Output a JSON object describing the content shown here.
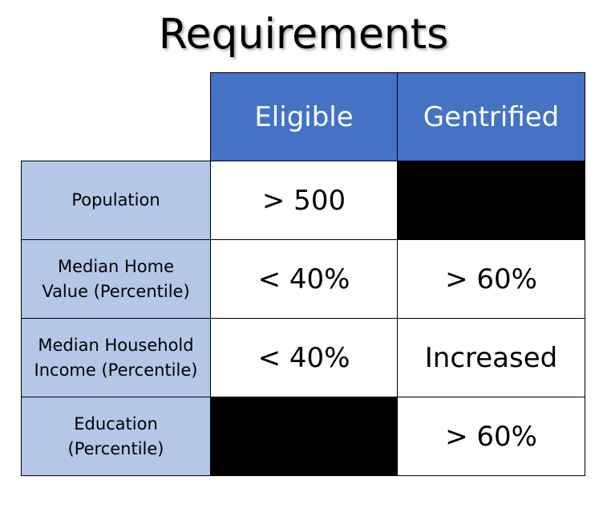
{
  "title": "Requirements",
  "columns": [
    "Eligible",
    "Gentrified"
  ],
  "rows": [
    {
      "label": "Population",
      "eligible": "> 500",
      "gentrified": ""
    },
    {
      "label": "Median Home Value (Percentile)",
      "eligible": "< 40%",
      "gentrified": "> 60%"
    },
    {
      "label": "Median Household Income (Percentile)",
      "eligible": "< 40%",
      "gentrified": "Increased"
    },
    {
      "label": "Education (Percentile)",
      "eligible": "",
      "gentrified": "> 60%"
    }
  ],
  "colors": {
    "header_bg": "#4472c4",
    "row_label_bg": "#b4c7e7",
    "blank_cell_bg": "#000000"
  }
}
